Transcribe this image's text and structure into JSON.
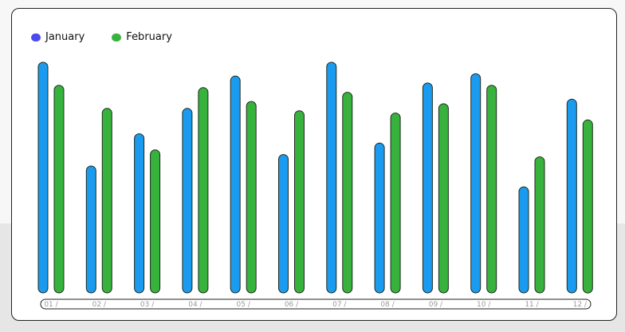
{
  "chart_data": {
    "type": "bar",
    "categories": [
      "01 /",
      "02 /",
      "03 /",
      "04 /",
      "05 /",
      "06 /",
      "07 /",
      "08 /",
      "09 /",
      "10 /",
      "11 /",
      "12 /"
    ],
    "series": [
      {
        "name": "January",
        "color": "#1a9bf0",
        "values": [
          100,
          55,
          69,
          80,
          94,
          60,
          100,
          65,
          91,
          95,
          46,
          84
        ]
      },
      {
        "name": "February",
        "color": "#37b23c",
        "values": [
          90,
          80,
          62,
          89,
          83,
          79,
          87,
          78,
          82,
          90,
          59,
          75
        ]
      }
    ],
    "legend_colors": [
      "#4a4af0",
      "#37b23c"
    ],
    "ylim": [
      0,
      100
    ],
    "grid": false,
    "legend_position": "top-left"
  }
}
